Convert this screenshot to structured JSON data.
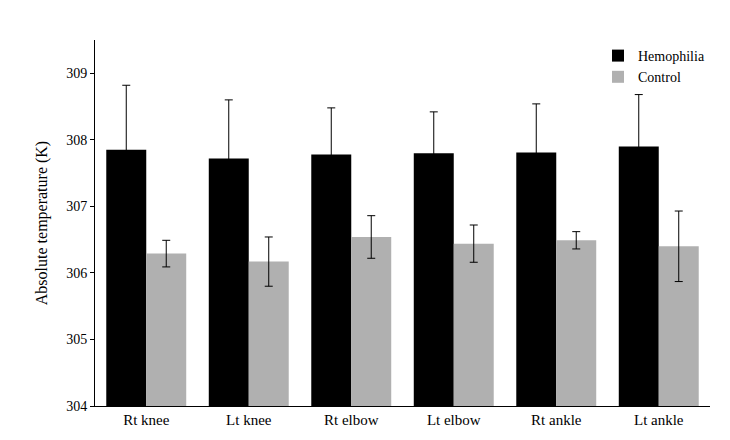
{
  "chart_data": {
    "type": "bar",
    "y_label": "Absolute temperature (K)",
    "categories": [
      "Rt knee",
      "Lt knee",
      "Rt elbow",
      "Lt elbow",
      "Rt ankle",
      "Lt ankle"
    ],
    "series": [
      {
        "name": "Hemophilia",
        "color": "#000000",
        "values": [
          307.85,
          307.72,
          307.78,
          307.8,
          307.81,
          307.9
        ],
        "errors": [
          0.97,
          0.88,
          0.7,
          0.62,
          0.73,
          0.78
        ]
      },
      {
        "name": "Control",
        "color": "#b0b0b0",
        "values": [
          306.29,
          306.17,
          306.54,
          306.44,
          306.49,
          306.4
        ],
        "errors": [
          0.2,
          0.37,
          0.32,
          0.28,
          0.13,
          0.53
        ]
      }
    ],
    "ylim": [
      304,
      309.5
    ],
    "yticks": [
      304,
      305,
      306,
      307,
      308,
      309
    ],
    "grid": false,
    "legend": "top right"
  }
}
